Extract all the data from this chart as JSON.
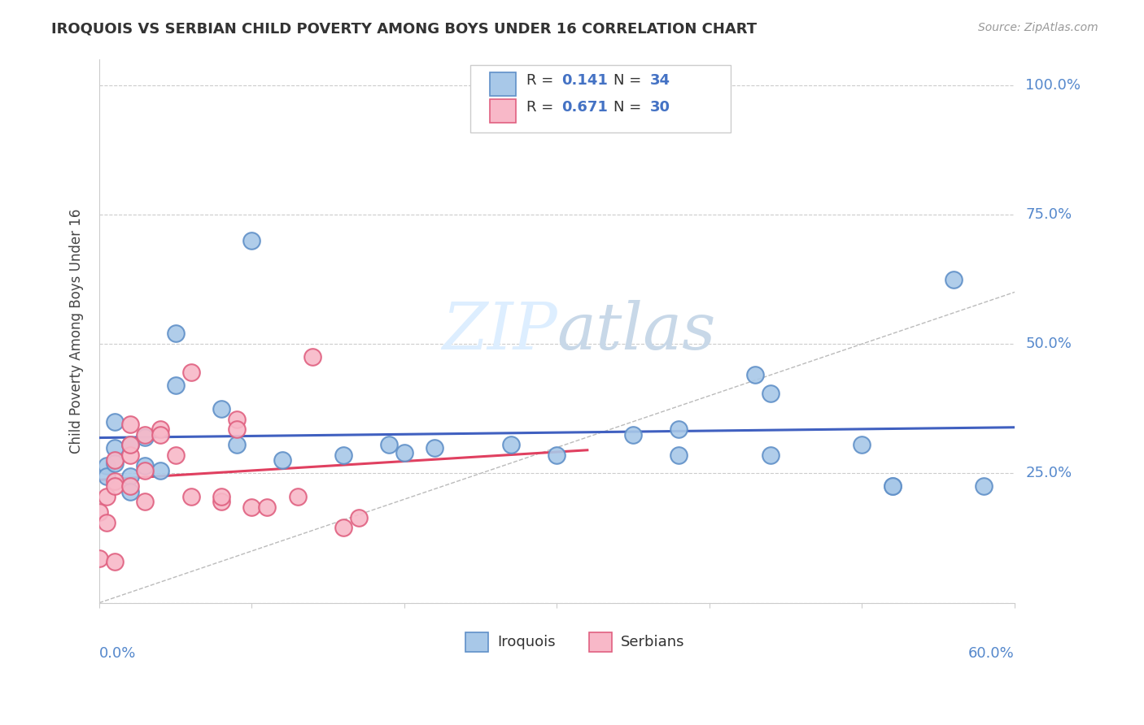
{
  "title": "IROQUOIS VS SERBIAN CHILD POVERTY AMONG BOYS UNDER 16 CORRELATION CHART",
  "source": "Source: ZipAtlas.com",
  "ylabel": "Child Poverty Among Boys Under 16",
  "yticks": [
    0.0,
    0.25,
    0.5,
    0.75,
    1.0
  ],
  "ytick_labels": [
    "",
    "25.0%",
    "50.0%",
    "75.0%",
    "100.0%"
  ],
  "xlim": [
    0.0,
    0.6
  ],
  "ylim": [
    0.0,
    1.05
  ],
  "R1": "0.141",
  "N1": "34",
  "R2": "0.671",
  "N2": "30",
  "color_iroquois_fill": "#a8c8e8",
  "color_iroquois_edge": "#6090c8",
  "color_serbian_fill": "#f8b8c8",
  "color_serbian_edge": "#e06080",
  "color_iroquois_line": "#4060c0",
  "color_serbian_line": "#e04060",
  "watermark_color": "#ddeeff",
  "iroquois_x": [
    0.005,
    0.005,
    0.01,
    0.01,
    0.01,
    0.02,
    0.02,
    0.02,
    0.03,
    0.03,
    0.04,
    0.05,
    0.05,
    0.08,
    0.09,
    0.1,
    0.12,
    0.16,
    0.19,
    0.2,
    0.22,
    0.27,
    0.3,
    0.35,
    0.38,
    0.38,
    0.43,
    0.44,
    0.44,
    0.5,
    0.52,
    0.52,
    0.56,
    0.58
  ],
  "iroquois_y": [
    0.265,
    0.245,
    0.3,
    0.35,
    0.27,
    0.245,
    0.305,
    0.215,
    0.32,
    0.265,
    0.255,
    0.52,
    0.42,
    0.375,
    0.305,
    0.7,
    0.275,
    0.285,
    0.305,
    0.29,
    0.3,
    0.305,
    0.285,
    0.325,
    0.335,
    0.285,
    0.44,
    0.405,
    0.285,
    0.305,
    0.225,
    0.225,
    0.625,
    0.225
  ],
  "serbian_x": [
    0.0,
    0.0,
    0.005,
    0.005,
    0.01,
    0.01,
    0.01,
    0.01,
    0.02,
    0.02,
    0.02,
    0.02,
    0.03,
    0.03,
    0.03,
    0.04,
    0.04,
    0.05,
    0.06,
    0.06,
    0.08,
    0.08,
    0.09,
    0.09,
    0.1,
    0.11,
    0.13,
    0.14,
    0.16,
    0.17
  ],
  "serbian_y": [
    0.085,
    0.175,
    0.155,
    0.205,
    0.235,
    0.275,
    0.225,
    0.08,
    0.225,
    0.285,
    0.305,
    0.345,
    0.195,
    0.255,
    0.325,
    0.335,
    0.325,
    0.285,
    0.445,
    0.205,
    0.195,
    0.205,
    0.355,
    0.335,
    0.185,
    0.185,
    0.205,
    0.475,
    0.145,
    0.165
  ]
}
